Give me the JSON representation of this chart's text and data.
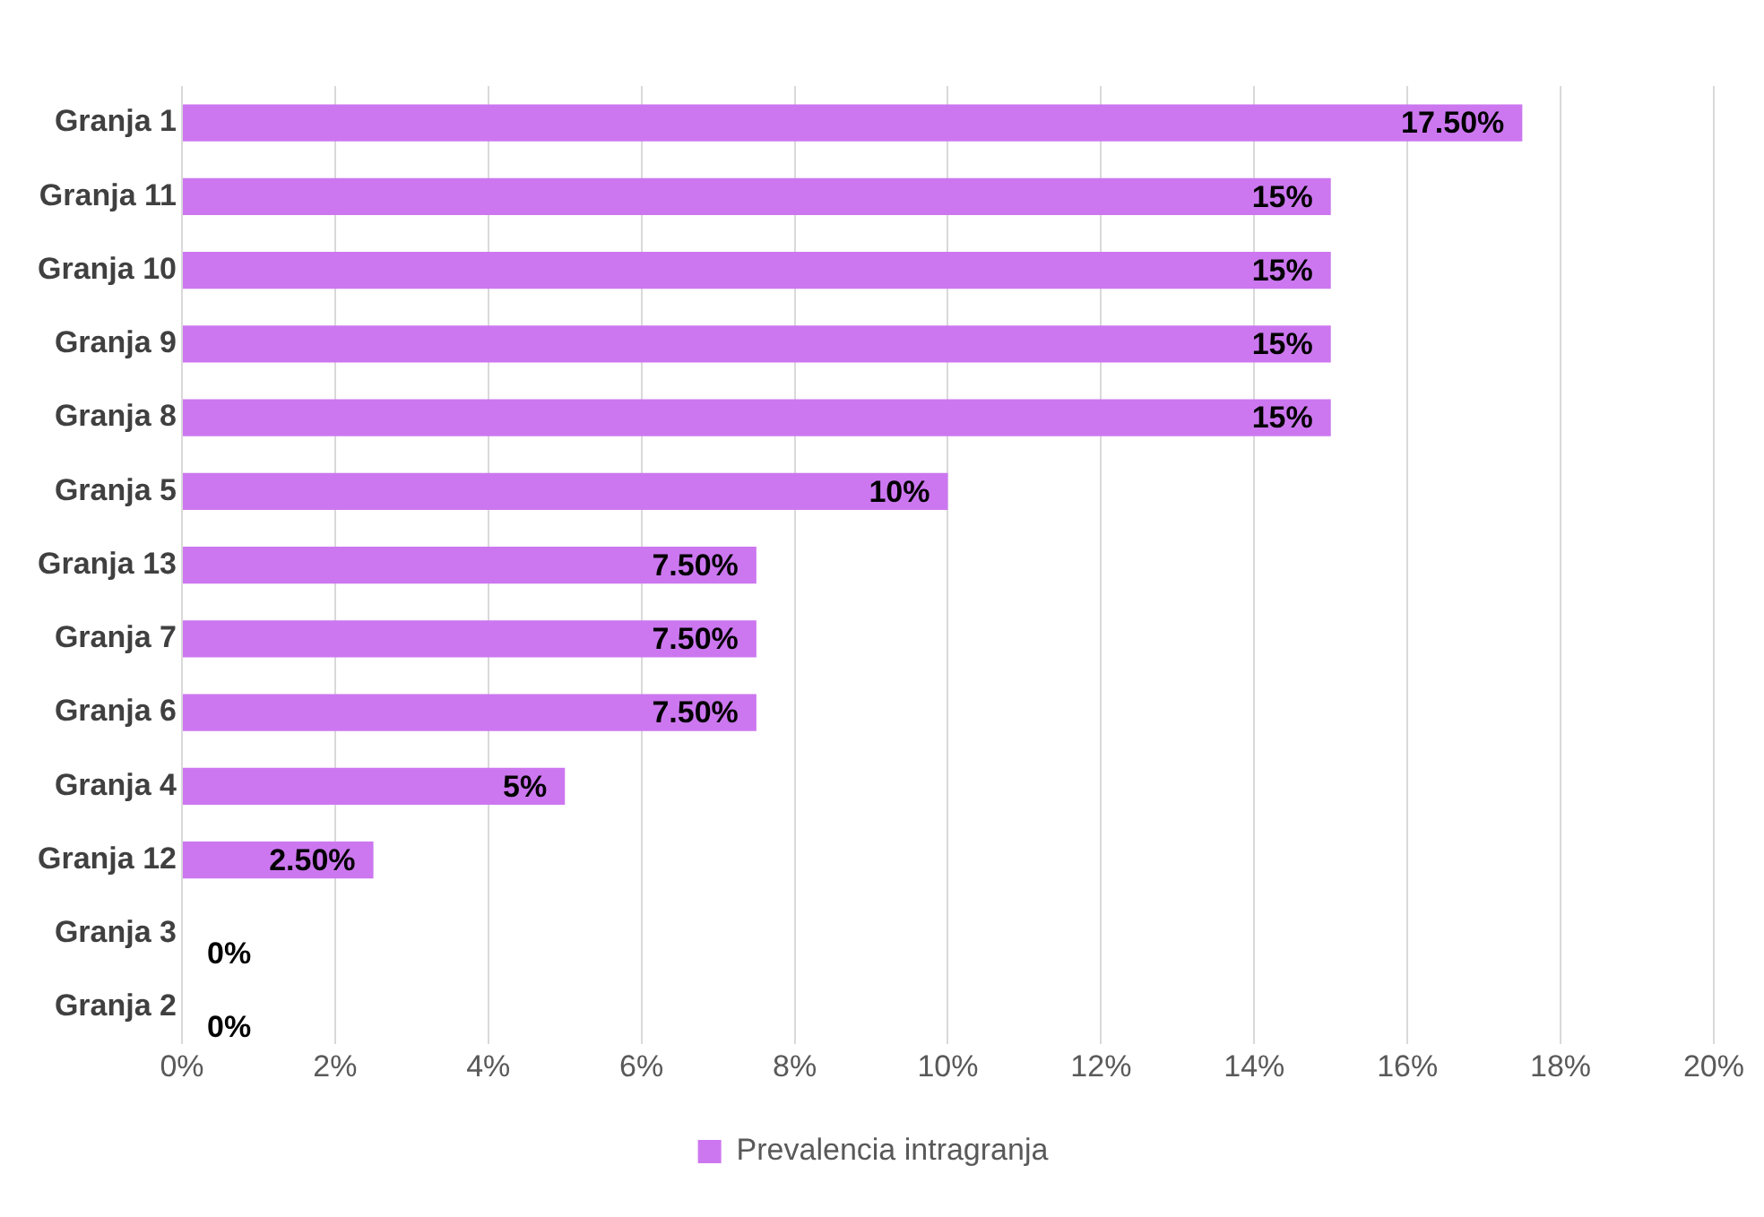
{
  "chart_data": {
    "type": "bar",
    "orientation": "horizontal",
    "categories": [
      "Granja 1",
      "Granja 11",
      "Granja 10",
      "Granja 9",
      "Granja 8",
      "Granja 5",
      "Granja 13",
      "Granja 7",
      "Granja 6",
      "Granja 4",
      "Granja 12",
      "Granja 3",
      "Granja 2"
    ],
    "series": [
      {
        "name": "Prevalencia intragranja",
        "color": "#cc77f0",
        "values": [
          17.5,
          15,
          15,
          15,
          15,
          10,
          7.5,
          7.5,
          7.5,
          5,
          2.5,
          0,
          0
        ],
        "value_labels": [
          "17.50%",
          "15%",
          "15%",
          "15%",
          "15%",
          "10%",
          "7.50%",
          "7.50%",
          "7.50%",
          "5%",
          "2.50%",
          "0%",
          "0%"
        ]
      }
    ],
    "xlim": [
      0,
      20
    ],
    "xticks": [
      {
        "value": 0,
        "label": "0%"
      },
      {
        "value": 2,
        "label": "2%"
      },
      {
        "value": 4,
        "label": "4%"
      },
      {
        "value": 6,
        "label": "6%"
      },
      {
        "value": 8,
        "label": "8%"
      },
      {
        "value": 10,
        "label": "10%"
      },
      {
        "value": 12,
        "label": "12%"
      },
      {
        "value": 14,
        "label": "14%"
      },
      {
        "value": 16,
        "label": "16%"
      },
      {
        "value": 18,
        "label": "18%"
      },
      {
        "value": 20,
        "label": "20%"
      }
    ],
    "grid": "x",
    "legend": "bottom"
  }
}
